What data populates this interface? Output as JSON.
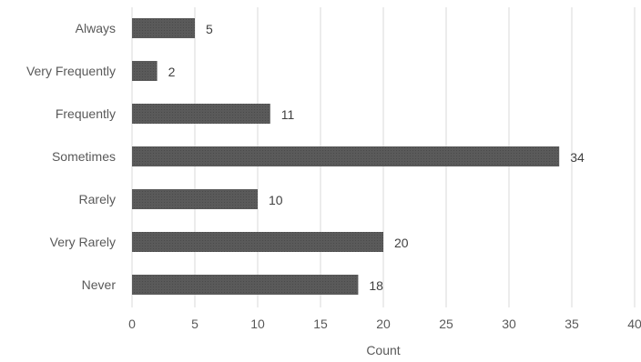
{
  "chart_data": {
    "type": "bar",
    "orientation": "horizontal",
    "categories": [
      "Always",
      "Very Frequently",
      "Frequently",
      "Sometimes",
      "Rarely",
      "Very Rarely",
      "Never"
    ],
    "values": [
      5,
      2,
      11,
      34,
      10,
      20,
      18
    ],
    "xlabel": "Count",
    "ylabel": "",
    "xlim": [
      0,
      40
    ],
    "xticks": [
      "0",
      "5",
      "10",
      "15",
      "20",
      "25",
      "30",
      "35",
      "40"
    ],
    "grid": "vertical",
    "data_labels": true,
    "bar_color": "#595959",
    "grid_color": "#d9d9d9",
    "text_color": "#595959"
  }
}
